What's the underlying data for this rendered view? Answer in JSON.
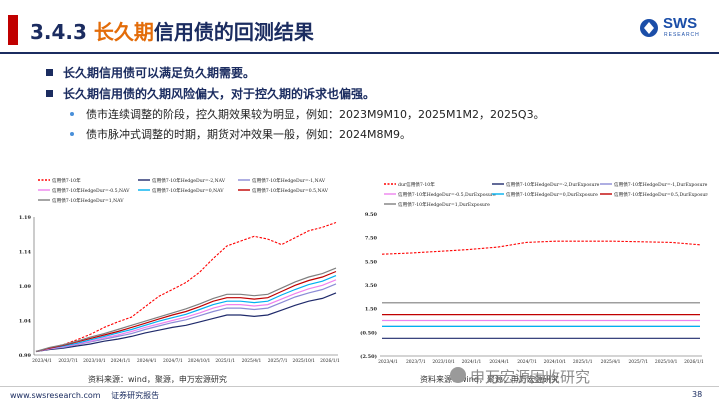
{
  "title": {
    "number": "3.4.3",
    "highlight": "长久期",
    "rest": "信用债的回测结果"
  },
  "logo": {
    "name": "SWS",
    "sub": "RESEARCH"
  },
  "bullets": [
    {
      "text": "长久期信用债可以满足负久期需要。"
    },
    {
      "text": "长久期信用债的久期风险偏大，对于控久期的诉求也偏强。"
    }
  ],
  "sub_bullets": [
    {
      "text": "债市连续调整的阶段，控久期效果较为明显，例如：2023M9M10，2025M1M2，2025Q3。"
    },
    {
      "text": "债市脉冲式调整的时期，期货对冲效果一般，例如：2024M8M9。"
    }
  ],
  "left_source": "资料来源：wind，聚源，申万宏源研究",
  "right_source": "资料来源：wind，聚源，申万宏源研究",
  "footer": {
    "site": "www.swsresearch.com",
    "label": "证券研究报告",
    "page": "38"
  },
  "watermark": "申万宏源固收研究",
  "chart_data": [
    {
      "type": "line",
      "legend": [
        "信用债7-10年",
        "信用债7-10年HedgeDur=-2,NAV",
        "信用债7-10年HedgeDur=-1,NAV",
        "信用债7-10年HedgeDur=-0.5,NAV",
        "信用债7-10年HedgeDur=0,NAV",
        "信用债7-10年HedgeDur=0.5,NAV",
        "信用债7-10年HedgeDur=1,NAV"
      ],
      "colors": [
        "#ff0000",
        "#1f2a6b",
        "#8b8bd6",
        "#ee82ee",
        "#00b0f0",
        "#c00000",
        "#7f7f7f"
      ],
      "yticks": [
        "1.19",
        "1.14",
        "1.09",
        "1.04",
        "0.99"
      ],
      "ylim": [
        0.99,
        1.19
      ],
      "xticks": [
        "2023/4/1",
        "2023/7/1",
        "2023/10/1",
        "2024/1/1",
        "2024/4/1",
        "2024/7/1",
        "2024/10/1",
        "2025/1/1",
        "2025/4/1",
        "2025/7/1",
        "2025/10/1",
        "2026/1/1"
      ],
      "x": [
        0,
        5,
        10,
        15,
        20,
        25,
        30,
        35,
        40,
        45,
        50,
        55,
        60,
        65,
        70,
        75,
        80,
        85,
        90,
        95,
        100,
        105,
        110
      ],
      "series": [
        {
          "name": "信用债7-10年",
          "values": [
            0.995,
            1.0,
            1.005,
            1.012,
            1.02,
            1.03,
            1.038,
            1.045,
            1.06,
            1.075,
            1.085,
            1.095,
            1.11,
            1.13,
            1.148,
            1.155,
            1.162,
            1.158,
            1.15,
            1.16,
            1.17,
            1.175,
            1.182
          ]
        },
        {
          "name": "信用债7-10年HedgeDur=-2,NAV",
          "values": [
            0.995,
            0.998,
            1.0,
            1.003,
            1.006,
            1.01,
            1.013,
            1.017,
            1.022,
            1.026,
            1.03,
            1.033,
            1.038,
            1.043,
            1.048,
            1.048,
            1.046,
            1.048,
            1.055,
            1.062,
            1.068,
            1.072,
            1.08
          ]
        },
        {
          "name": "信用债7-10年HedgeDur=-1,NAV",
          "values": [
            0.995,
            0.999,
            1.001,
            1.005,
            1.009,
            1.013,
            1.017,
            1.021,
            1.027,
            1.032,
            1.037,
            1.041,
            1.047,
            1.053,
            1.058,
            1.058,
            1.056,
            1.058,
            1.066,
            1.074,
            1.08,
            1.085,
            1.093
          ]
        },
        {
          "name": "信用债7-10年HedgeDur=-0.5,NAV",
          "values": [
            0.995,
            0.999,
            1.002,
            1.006,
            1.01,
            1.015,
            1.019,
            1.024,
            1.03,
            1.035,
            1.04,
            1.045,
            1.051,
            1.058,
            1.063,
            1.063,
            1.061,
            1.063,
            1.071,
            1.079,
            1.086,
            1.091,
            1.099
          ]
        },
        {
          "name": "信用债7-10年HedgeDur=0,NAV",
          "values": [
            0.995,
            1.0,
            1.003,
            1.007,
            1.012,
            1.017,
            1.022,
            1.027,
            1.033,
            1.039,
            1.044,
            1.049,
            1.056,
            1.063,
            1.068,
            1.068,
            1.066,
            1.068,
            1.077,
            1.085,
            1.092,
            1.097,
            1.105
          ]
        },
        {
          "name": "信用债7-10年HedgeDur=0.5,NAV",
          "values": [
            0.995,
            1.0,
            1.004,
            1.009,
            1.014,
            1.019,
            1.024,
            1.03,
            1.036,
            1.042,
            1.048,
            1.053,
            1.06,
            1.068,
            1.073,
            1.073,
            1.071,
            1.073,
            1.082,
            1.091,
            1.098,
            1.103,
            1.111
          ]
        },
        {
          "name": "信用债7-10年HedgeDur=1,NAV",
          "values": [
            0.995,
            1.001,
            1.005,
            1.01,
            1.016,
            1.021,
            1.027,
            1.033,
            1.039,
            1.045,
            1.051,
            1.057,
            1.064,
            1.072,
            1.078,
            1.078,
            1.076,
            1.078,
            1.087,
            1.096,
            1.103,
            1.108,
            1.116
          ]
        }
      ]
    },
    {
      "type": "line",
      "legend": [
        "dur信用债7-10年",
        "信用债7-10年HedgeDur=-2,DurExposure",
        "信用债7-10年HedgeDur=-1,DurExposure",
        "信用债7-10年HedgeDur=-0.5,DurExposure",
        "信用债7-10年HedgeDur=0,DurExposure",
        "信用债7-10年HedgeDur=0.5,DurExposure",
        "信用债7-10年HedgeDur=1,DurExposure"
      ],
      "colors": [
        "#ff0000",
        "#1f2a6b",
        "#8b8bd6",
        "#ee82ee",
        "#00b0f0",
        "#c00000",
        "#7f7f7f"
      ],
      "yticks": [
        "9.50",
        "7.50",
        "5.50",
        "3.50",
        "1.50",
        "(0.50)",
        "(2.50)"
      ],
      "ylim": [
        -2.5,
        9.5
      ],
      "xticks": [
        "2023/4/1",
        "2023/7/1",
        "2023/10/1",
        "2024/1/1",
        "2024/4/1",
        "2024/7/1",
        "2024/10/1",
        "2025/1/1",
        "2025/4/1",
        "2025/7/1",
        "2025/10/1",
        "2026/1/1"
      ],
      "x": [
        0,
        10,
        20,
        30,
        40,
        50,
        60,
        70,
        80,
        90,
        100,
        110
      ],
      "series": [
        {
          "name": "dur信用债7-10年",
          "values": [
            6.1,
            6.2,
            6.35,
            6.5,
            6.7,
            7.1,
            7.2,
            7.2,
            7.2,
            7.15,
            7.1,
            6.9
          ]
        },
        {
          "name": "信用债7-10年HedgeDur=-2,DurExposure",
          "values": [
            -1.0,
            -1.0,
            -1.0,
            -1.0,
            -1.0,
            -1.0,
            -1.0,
            -1.0,
            -1.0,
            -1.0,
            -1.0,
            -1.0
          ]
        },
        {
          "name": "信用债7-10年HedgeDur=-1,DurExposure",
          "values": [
            0.0,
            0.0,
            0.0,
            0.0,
            0.0,
            0.0,
            0.0,
            0.0,
            0.0,
            0.0,
            0.0,
            0.0
          ]
        },
        {
          "name": "信用债7-10年HedgeDur=-0.5,DurExposure",
          "values": [
            0.5,
            0.5,
            0.5,
            0.5,
            0.5,
            0.5,
            0.5,
            0.5,
            0.5,
            0.5,
            0.5,
            0.5
          ]
        },
        {
          "name": "信用债7-10年HedgeDur=0,DurExposure",
          "values": [
            0.0,
            0.0,
            0.0,
            0.0,
            0.0,
            0.0,
            0.0,
            0.0,
            0.0,
            0.0,
            0.0,
            0.0
          ]
        },
        {
          "name": "信用债7-10年HedgeDur=0.5,DurExposure",
          "values": [
            1.0,
            1.0,
            1.0,
            1.0,
            1.0,
            1.0,
            1.0,
            1.0,
            1.0,
            1.0,
            1.0,
            1.0
          ]
        },
        {
          "name": "信用债7-10年HedgeDur=1,DurExposure",
          "values": [
            2.0,
            2.0,
            2.0,
            2.0,
            2.0,
            2.0,
            2.0,
            2.0,
            2.0,
            2.0,
            2.0,
            2.0
          ]
        }
      ]
    }
  ]
}
